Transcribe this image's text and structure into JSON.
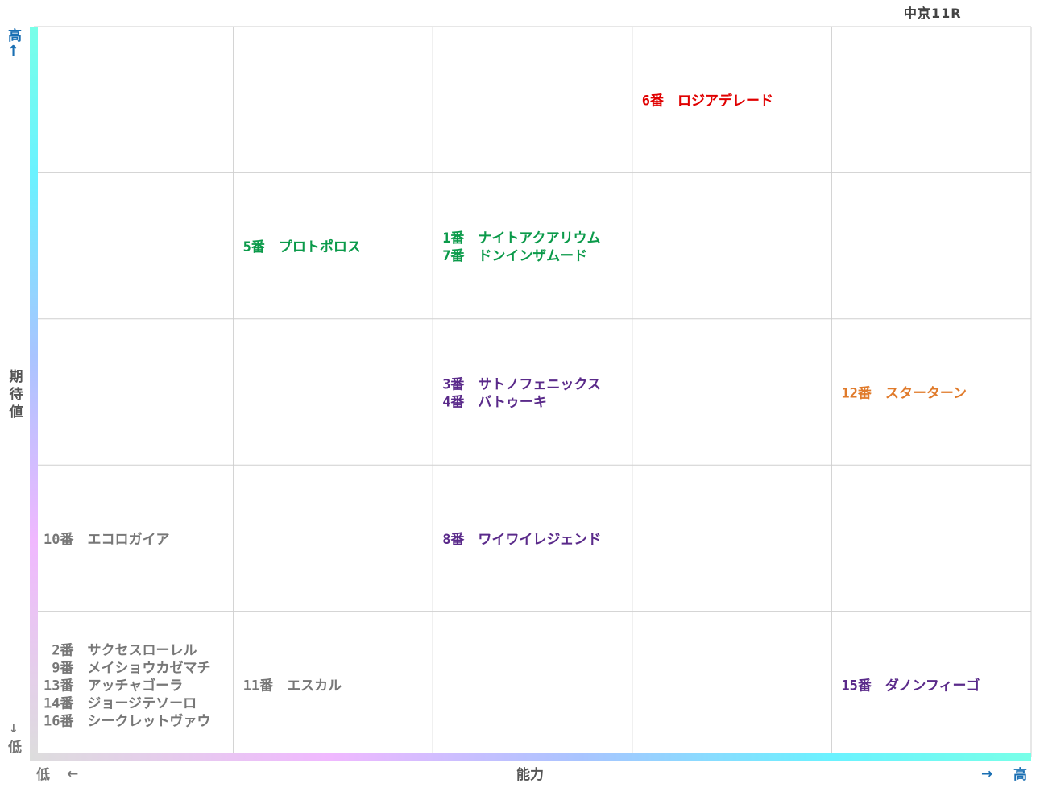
{
  "race_label": "中京11R",
  "axes": {
    "x_title": "能力",
    "y_title": "期待値",
    "low": "低",
    "high": "高",
    "arrow_left": "←",
    "arrow_right": "→",
    "arrow_up": "↑",
    "arrow_down": "↓"
  },
  "colors": {
    "green": "#0b9a4a",
    "red": "#e00000",
    "purple": "#5a2a8a",
    "orange": "#e07a2a",
    "gray": "#777777",
    "grid": "#cfcfcf",
    "axis_gradient": [
      "#dddddd",
      "#f0b8ff",
      "#a9c4ff",
      "#6af2ff",
      "#78ffe8"
    ]
  },
  "chart_data": {
    "type": "scatter",
    "grid": true,
    "xlim": [
      1,
      5
    ],
    "ylim": [
      1,
      5
    ],
    "xlabel": "能力",
    "ylabel": "期待値",
    "points": [
      {
        "x": 4,
        "y": 5,
        "color": "red",
        "lines": [
          {
            "num": "6番",
            "name": "ロジアデレード"
          }
        ]
      },
      {
        "x": 2,
        "y": 4,
        "color": "green",
        "lines": [
          {
            "num": "5番",
            "name": "プロトポロス"
          }
        ]
      },
      {
        "x": 3,
        "y": 4,
        "color": "green",
        "lines": [
          {
            "num": "1番",
            "name": "ナイトアクアリウム"
          },
          {
            "num": "7番",
            "name": "ドンインザムード"
          }
        ]
      },
      {
        "x": 3,
        "y": 3,
        "color": "purple",
        "lines": [
          {
            "num": "3番",
            "name": "サトノフェニックス"
          },
          {
            "num": "4番",
            "name": "バトゥーキ"
          }
        ]
      },
      {
        "x": 5,
        "y": 3,
        "color": "orange",
        "lines": [
          {
            "num": "12番",
            "name": "スターターン"
          }
        ]
      },
      {
        "x": 1,
        "y": 2,
        "color": "gray",
        "lines": [
          {
            "num": "10番",
            "name": "エコロガイア"
          }
        ]
      },
      {
        "x": 3,
        "y": 2,
        "color": "purple",
        "lines": [
          {
            "num": "8番",
            "name": "ワイワイレジェンド"
          }
        ]
      },
      {
        "x": 1,
        "y": 1,
        "color": "gray",
        "lines": [
          {
            "num": "2番",
            "name": "サクセスローレル"
          },
          {
            "num": "9番",
            "name": "メイショウカゼマチ"
          },
          {
            "num": "13番",
            "name": "アッチャゴーラ"
          },
          {
            "num": "14番",
            "name": "ジョージテソーロ"
          },
          {
            "num": "16番",
            "name": "シークレットヴァウ"
          }
        ]
      },
      {
        "x": 2,
        "y": 1,
        "color": "gray",
        "lines": [
          {
            "num": "11番",
            "name": "エスカル"
          }
        ]
      },
      {
        "x": 5,
        "y": 1,
        "color": "purple",
        "lines": [
          {
            "num": "15番",
            "name": "ダノンフィーゴ"
          }
        ]
      }
    ]
  }
}
